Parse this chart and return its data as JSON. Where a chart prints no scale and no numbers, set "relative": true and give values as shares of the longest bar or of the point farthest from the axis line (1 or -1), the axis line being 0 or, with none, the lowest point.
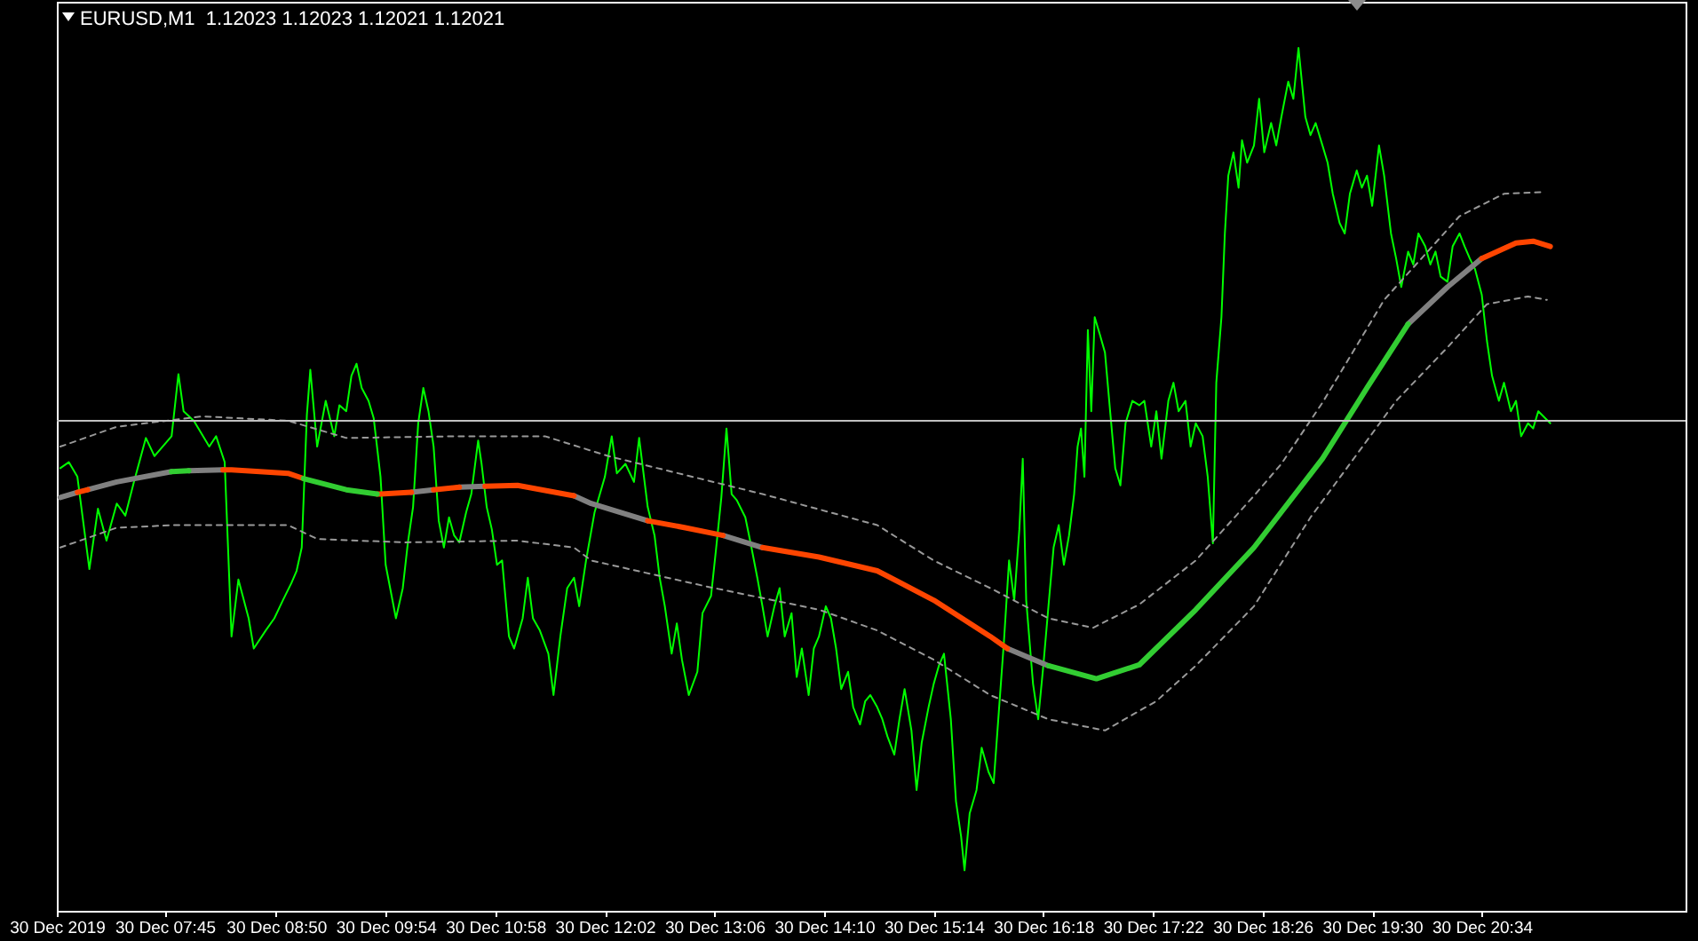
{
  "chart_data": {
    "type": "line",
    "title": "EURUSD,M1  1.12023 1.12023 1.12021 1.12021",
    "relative": true,
    "xlim": [
      "2019-12-30T06:42",
      "2019-12-30T22:33"
    ],
    "xticks": [
      {
        "value": "2019-12-30T06:42",
        "label": "30 Dec 2019"
      },
      {
        "value": "2019-12-30T07:45",
        "label": "30 Dec 07:45"
      },
      {
        "value": "2019-12-30T08:50",
        "label": "30 Dec 08:50"
      },
      {
        "value": "2019-12-30T09:54",
        "label": "30 Dec 09:54"
      },
      {
        "value": "2019-12-30T10:58",
        "label": "30 Dec 10:58"
      },
      {
        "value": "2019-12-30T12:02",
        "label": "30 Dec 12:02"
      },
      {
        "value": "2019-12-30T13:06",
        "label": "30 Dec 13:06"
      },
      {
        "value": "2019-12-30T14:10",
        "label": "30 Dec 14:10"
      },
      {
        "value": "2019-12-30T15:14",
        "label": "30 Dec 15:14"
      },
      {
        "value": "2019-12-30T16:18",
        "label": "30 Dec 16:18"
      },
      {
        "value": "2019-12-30T17:22",
        "label": "30 Dec 17:22"
      },
      {
        "value": "2019-12-30T18:26",
        "label": "30 Dec 18:26"
      },
      {
        "value": "2019-12-30T19:30",
        "label": "30 Dec 19:30"
      },
      {
        "value": "2019-12-30T20:34",
        "label": "30 Dec 20:34"
      }
    ],
    "series": [
      {
        "color": "#00ff00",
        "x": [
          "2019-12-30T06:44",
          "2019-12-30T06:49",
          "2019-12-30T06:54",
          "2019-12-30T07:01",
          "2019-12-30T07:06",
          "2019-12-30T07:11",
          "2019-12-30T07:17",
          "2019-12-30T07:22",
          "2019-12-30T07:27",
          "2019-12-30T07:34",
          "2019-12-30T07:39",
          "2019-12-30T07:49",
          "2019-12-30T07:53",
          "2019-12-30T07:56",
          "2019-12-30T08:02",
          "2019-12-30T08:11",
          "2019-12-30T08:15",
          "2019-12-30T08:20",
          "2019-12-30T08:24",
          "2019-12-30T08:28",
          "2019-12-30T08:34",
          "2019-12-30T08:37",
          "2019-12-30T08:44",
          "2019-12-30T08:49",
          "2019-12-30T08:54",
          "2019-12-30T08:59",
          "2019-12-30T09:02",
          "2019-12-30T09:05",
          "2019-12-30T09:08",
          "2019-12-30T09:10",
          "2019-12-30T09:14",
          "2019-12-30T09:19",
          "2019-12-30T09:24",
          "2019-12-30T09:27",
          "2019-12-30T09:31",
          "2019-12-30T09:34",
          "2019-12-30T09:37",
          "2019-12-30T09:40",
          "2019-12-30T09:44",
          "2019-12-30T09:47",
          "2019-12-30T09:51",
          "2019-12-30T09:54",
          "2019-12-30T10:00",
          "2019-12-30T10:04",
          "2019-12-30T10:07",
          "2019-12-30T10:10",
          "2019-12-30T10:13",
          "2019-12-30T10:16",
          "2019-12-30T10:19",
          "2019-12-30T10:22",
          "2019-12-30T10:25",
          "2019-12-30T10:28",
          "2019-12-30T10:31",
          "2019-12-30T10:34",
          "2019-12-30T10:37",
          "2019-12-30T10:41",
          "2019-12-30T10:44",
          "2019-12-30T10:48",
          "2019-12-30T10:50",
          "2019-12-30T10:53",
          "2019-12-30T10:56",
          "2019-12-30T10:59",
          "2019-12-30T11:02",
          "2019-12-30T11:06",
          "2019-12-30T11:09",
          "2019-12-30T11:14",
          "2019-12-30T11:17",
          "2019-12-30T11:20",
          "2019-12-30T11:24",
          "2019-12-30T11:29",
          "2019-12-30T11:32",
          "2019-12-30T11:36",
          "2019-12-30T11:40",
          "2019-12-30T11:44",
          "2019-12-30T11:47",
          "2019-12-30T11:51",
          "2019-12-30T11:56",
          "2019-12-30T12:02",
          "2019-12-30T12:06",
          "2019-12-30T12:09",
          "2019-12-30T12:14",
          "2019-12-30T12:19",
          "2019-12-30T12:22",
          "2019-12-30T12:27",
          "2019-12-30T12:31",
          "2019-12-30T12:34",
          "2019-12-30T12:37",
          "2019-12-30T12:41",
          "2019-12-30T12:44",
          "2019-12-30T12:47",
          "2019-12-30T12:51",
          "2019-12-30T12:56",
          "2019-12-30T12:59",
          "2019-12-30T13:04",
          "2019-12-30T13:07",
          "2019-12-30T13:10",
          "2019-12-30T13:13",
          "2019-12-30T13:16",
          "2019-12-30T13:19",
          "2019-12-30T13:24",
          "2019-12-30T13:27",
          "2019-12-30T13:31",
          "2019-12-30T13:34",
          "2019-12-30T13:37",
          "2019-12-30T13:41",
          "2019-12-30T13:44",
          "2019-12-30T13:47",
          "2019-12-30T13:51",
          "2019-12-30T13:54",
          "2019-12-30T13:57",
          "2019-12-30T14:01",
          "2019-12-30T14:04",
          "2019-12-30T14:07",
          "2019-12-30T14:11",
          "2019-12-30T14:14",
          "2019-12-30T14:17",
          "2019-12-30T14:20",
          "2019-12-30T14:24",
          "2019-12-30T14:27",
          "2019-12-30T14:31",
          "2019-12-30T14:34",
          "2019-12-30T14:37",
          "2019-12-30T14:41",
          "2019-12-30T14:44",
          "2019-12-30T14:47",
          "2019-12-30T14:51",
          "2019-12-30T14:54",
          "2019-12-30T14:57",
          "2019-12-30T15:01",
          "2019-12-30T15:04",
          "2019-12-30T15:07",
          "2019-12-30T15:11",
          "2019-12-30T15:14",
          "2019-12-30T15:17",
          "2019-12-30T15:20",
          "2019-12-30T15:24",
          "2019-12-30T15:27",
          "2019-12-30T15:30",
          "2019-12-30T15:32",
          "2019-12-30T15:35",
          "2019-12-30T15:39",
          "2019-12-30T15:42",
          "2019-12-30T15:46",
          "2019-12-30T15:49",
          "2019-12-30T15:52",
          "2019-12-30T15:55",
          "2019-12-30T15:58",
          "2019-12-30T16:01",
          "2019-12-30T16:04",
          "2019-12-30T16:06",
          "2019-12-30T16:08",
          "2019-12-30T16:12",
          "2019-12-30T16:15",
          "2019-12-30T16:18",
          "2019-12-30T16:21",
          "2019-12-30T16:24",
          "2019-12-30T16:27",
          "2019-12-30T16:30",
          "2019-12-30T16:33",
          "2019-12-30T16:36",
          "2019-12-30T16:38",
          "2019-12-30T16:40",
          "2019-12-30T16:42",
          "2019-12-30T16:44",
          "2019-12-30T16:46",
          "2019-12-30T16:48",
          "2019-12-30T16:51",
          "2019-12-30T16:54",
          "2019-12-30T16:57",
          "2019-12-30T17:00",
          "2019-12-30T17:03",
          "2019-12-30T17:06",
          "2019-12-30T17:10",
          "2019-12-30T17:14",
          "2019-12-30T17:17",
          "2019-12-30T17:21",
          "2019-12-30T17:24",
          "2019-12-30T17:27",
          "2019-12-30T17:31",
          "2019-12-30T17:34",
          "2019-12-30T17:37",
          "2019-12-30T17:41",
          "2019-12-30T17:44",
          "2019-12-30T17:47",
          "2019-12-30T17:51",
          "2019-12-30T17:54",
          "2019-12-30T17:57",
          "2019-12-30T17:59",
          "2019-12-30T18:02",
          "2019-12-30T18:04",
          "2019-12-30T18:06",
          "2019-12-30T18:09",
          "2019-12-30T18:12",
          "2019-12-30T18:14",
          "2019-12-30T18:17",
          "2019-12-30T18:21",
          "2019-12-30T18:24",
          "2019-12-30T18:27",
          "2019-12-30T18:31",
          "2019-12-30T18:34",
          "2019-12-30T18:37",
          "2019-12-30T18:41",
          "2019-12-30T18:44",
          "2019-12-30T18:47",
          "2019-12-30T18:51",
          "2019-12-30T18:54",
          "2019-12-30T18:57",
          "2019-12-30T19:01",
          "2019-12-30T19:04",
          "2019-12-30T19:07",
          "2019-12-30T19:11",
          "2019-12-30T19:14",
          "2019-12-30T19:17",
          "2019-12-30T19:21",
          "2019-12-30T19:24",
          "2019-12-30T19:27",
          "2019-12-30T19:30",
          "2019-12-30T19:34",
          "2019-12-30T19:37",
          "2019-12-30T19:41",
          "2019-12-30T19:44",
          "2019-12-30T19:47",
          "2019-12-30T19:51",
          "2019-12-30T19:54",
          "2019-12-30T19:57",
          "2019-12-30T20:01",
          "2019-12-30T20:04",
          "2019-12-30T20:07",
          "2019-12-30T20:10",
          "2019-12-30T20:14",
          "2019-12-30T20:17",
          "2019-12-30T20:21",
          "2019-12-30T20:24",
          "2019-12-30T20:27",
          "2019-12-30T20:30",
          "2019-12-30T20:34",
          "2019-12-30T20:37",
          "2019-12-30T20:40",
          "2019-12-30T20:44",
          "2019-12-30T20:47",
          "2019-12-30T20:51",
          "2019-12-30T20:54",
          "2019-12-30T20:57",
          "2019-12-30T21:01",
          "2019-12-30T21:04",
          "2019-12-30T21:07",
          "2019-12-30T21:11",
          "2019-12-30T21:14"
        ],
        "values": [
          0.513,
          0.52,
          0.503,
          0.396,
          0.466,
          0.429,
          0.472,
          0.458,
          0.497,
          0.548,
          0.527,
          0.55,
          0.622,
          0.579,
          0.568,
          0.538,
          0.55,
          0.52,
          0.318,
          0.384,
          0.339,
          0.304,
          0.325,
          0.339,
          0.36,
          0.38,
          0.394,
          0.421,
          0.575,
          0.627,
          0.538,
          0.591,
          0.55,
          0.586,
          0.579,
          0.62,
          0.634,
          0.606,
          0.591,
          0.571,
          0.503,
          0.401,
          0.339,
          0.374,
          0.427,
          0.468,
          0.565,
          0.606,
          0.579,
          0.538,
          0.452,
          0.421,
          0.456,
          0.435,
          0.427,
          0.462,
          0.483,
          0.545,
          0.518,
          0.468,
          0.442,
          0.401,
          0.406,
          0.318,
          0.304,
          0.339,
          0.386,
          0.339,
          0.325,
          0.298,
          0.25,
          0.318,
          0.374,
          0.386,
          0.353,
          0.406,
          0.462,
          0.503,
          0.55,
          0.507,
          0.518,
          0.497,
          0.548,
          0.468,
          0.435,
          0.386,
          0.353,
          0.298,
          0.333,
          0.291,
          0.25,
          0.277,
          0.345,
          0.365,
          0.421,
          0.479,
          0.559,
          0.483,
          0.476,
          0.456,
          0.427,
          0.386,
          0.353,
          0.318,
          0.353,
          0.374,
          0.318,
          0.345,
          0.271,
          0.304,
          0.25,
          0.304,
          0.318,
          0.353,
          0.339,
          0.304,
          0.257,
          0.277,
          0.236,
          0.216,
          0.243,
          0.25,
          0.236,
          0.222,
          0.202,
          0.181,
          0.222,
          0.257,
          0.209,
          0.14,
          0.195,
          0.236,
          0.263,
          0.284,
          0.298,
          0.222,
          0.127,
          0.086,
          0.047,
          0.113,
          0.14,
          0.189,
          0.161,
          0.148,
          0.23,
          0.312,
          0.406,
          0.36,
          0.442,
          0.524,
          0.36,
          0.263,
          0.222,
          0.284,
          0.353,
          0.421,
          0.447,
          0.401,
          0.435,
          0.483,
          0.538,
          0.559,
          0.503,
          0.673,
          0.579,
          0.688,
          0.668,
          0.647,
          0.579,
          0.513,
          0.493,
          0.565,
          0.591,
          0.586,
          0.591,
          0.538,
          0.579,
          0.524,
          0.591,
          0.612,
          0.579,
          0.591,
          0.538,
          0.565,
          0.55,
          0.503,
          0.426,
          0.612,
          0.688,
          0.785,
          0.852,
          0.879,
          0.838,
          0.893,
          0.867,
          0.887,
          0.941,
          0.879,
          0.913,
          0.887,
          0.92,
          0.961,
          0.941,
          1,
          0.92,
          0.899,
          0.913,
          0.887,
          0.867,
          0.831,
          0.797,
          0.785,
          0.831,
          0.858,
          0.838,
          0.852,
          0.817,
          0.887,
          0.852,
          0.785,
          0.756,
          0.723,
          0.764,
          0.749,
          0.785,
          0.77,
          0.749,
          0.764,
          0.735,
          0.729,
          0.77,
          0.785,
          0.77,
          0.756,
          0.744,
          0.714,
          0.661,
          0.62,
          0.591,
          0.612,
          0.579,
          0.591,
          0.55,
          0.565,
          0.559,
          0.579,
          0.571,
          0.565
        ]
      },
      {
        "color": "#808080",
        "x": [
          "2019-12-30T06:44",
          "2019-12-30T06:54",
          "2019-12-30T06:57",
          "2019-12-30T07:00",
          "2019-12-30T07:17",
          "2019-12-30T07:49",
          "2019-12-30T07:54",
          "2019-12-30T07:59",
          "2019-12-30T08:19",
          "2019-12-30T09:18",
          "2019-12-30T10:09",
          "2019-12-30T10:22",
          "2019-12-30T10:30",
          "2019-12-30T10:37",
          "2019-12-30T10:52",
          "2019-12-30T11:18",
          "2019-12-30T11:44",
          "2019-12-30T11:54",
          "2019-12-30T12:27",
          "2019-12-30T12:48",
          "2019-12-30T13:11",
          "2019-12-30T13:34",
          "2019-12-30T14:48",
          "2019-12-30T15:57",
          "2019-12-30T16:21",
          "2019-12-30T18:00",
          "2019-12-30T19:51",
          "2019-12-30T20:14",
          "2019-12-30T20:34"
        ],
        "values": [
          0.479,
          0.485,
          null,
          0.488,
          0.497,
          0.509,
          null,
          0.51,
          0.511,
          null,
          0.485,
          0.488,
          null,
          0.491,
          0.492,
          null,
          0.481,
          0.472,
          0.452,
          null,
          0.435,
          0.421,
          null,
          0.304,
          0.284,
          null,
          0.68,
          0.723,
          0.756
        ]
      },
      {
        "color": "#ff4500",
        "x": [
          "2019-12-30T06:54",
          "2019-12-30T07:00",
          "2019-12-30T07:30",
          "2019-12-30T08:19",
          "2019-12-30T08:24",
          "2019-12-30T08:57",
          "2019-12-30T09:06",
          "2019-12-30T09:30",
          "2019-12-30T09:49",
          "2019-12-30T09:51",
          "2019-12-30T10:09",
          "2019-12-30T10:15",
          "2019-12-30T10:22",
          "2019-12-30T10:37",
          "2019-12-30T10:45",
          "2019-12-30T10:52",
          "2019-12-30T11:11",
          "2019-12-30T11:44",
          "2019-12-30T12:06",
          "2019-12-30T12:27",
          "2019-12-30T12:49",
          "2019-12-30T13:11",
          "2019-12-30T13:24",
          "2019-12-30T13:34",
          "2019-12-30T14:07",
          "2019-12-30T14:41",
          "2019-12-30T15:14",
          "2019-12-30T15:47",
          "2019-12-30T15:57",
          "2019-12-30T18:00",
          "2019-12-30T20:34",
          "2019-12-30T20:54",
          "2019-12-30T21:04",
          "2019-12-30T21:14"
        ],
        "values": [
          0.485,
          0.488,
          null,
          0.511,
          0.511,
          0.507,
          0.501,
          null,
          0.483,
          0.483,
          0.485,
          null,
          0.488,
          0.491,
          null,
          0.492,
          0.493,
          0.481,
          null,
          0.452,
          0.444,
          0.435,
          null,
          0.421,
          0.41,
          0.394,
          0.36,
          0.318,
          0.304,
          null,
          0.756,
          0.774,
          0.776,
          0.77
        ]
      },
      {
        "color": "#32cd32",
        "x": [
          "2019-12-30T07:49",
          "2019-12-30T07:59",
          "2019-12-30T08:30",
          "2019-12-30T09:06",
          "2019-12-30T09:31",
          "2019-12-30T09:49",
          "2019-12-30T13:00",
          "2019-12-30T16:21",
          "2019-12-30T16:49",
          "2019-12-30T17:14",
          "2019-12-30T17:47",
          "2019-12-30T18:21",
          "2019-12-30T19:01",
          "2019-12-30T19:27",
          "2019-12-30T19:51"
        ],
        "values": [
          0.509,
          0.51,
          null,
          0.501,
          0.488,
          0.483,
          null,
          0.284,
          0.269,
          0.285,
          0.349,
          0.421,
          0.524,
          0.606,
          0.68
        ]
      },
      {
        "color": "#999999",
        "line_style": "dashed",
        "x": [
          "2019-12-30T06:44",
          "2019-12-30T07:17",
          "2019-12-30T08:07",
          "2019-12-30T08:57",
          "2019-12-30T09:31",
          "2019-12-30T10:37",
          "2019-12-30T11:27",
          "2019-12-30T12:04",
          "2019-12-30T13:34",
          "2019-12-30T14:41",
          "2019-12-30T15:14",
          "2019-12-30T15:47",
          "2019-12-30T16:21",
          "2019-12-30T16:47",
          "2019-12-30T17:14",
          "2019-12-30T17:47",
          "2019-12-30T18:21",
          "2019-12-30T18:37",
          "2019-12-30T19:01",
          "2019-12-30T19:37",
          "2019-12-30T20:21",
          "2019-12-30T20:47",
          "2019-12-30T21:11"
        ],
        "values": [
          0.538,
          0.561,
          0.573,
          0.568,
          0.548,
          0.55,
          0.55,
          0.527,
          0.483,
          0.447,
          0.406,
          0.374,
          0.339,
          0.328,
          0.355,
          0.406,
          0.481,
          0.518,
          0.589,
          0.708,
          0.805,
          0.831,
          0.833
        ]
      },
      {
        "color": "#999999",
        "line_style": "dashed",
        "x": [
          "2019-12-30T06:44",
          "2019-12-30T07:17",
          "2019-12-30T07:51",
          "2019-12-30T08:57",
          "2019-12-30T09:14",
          "2019-12-30T10:04",
          "2019-12-30T11:11",
          "2019-12-30T11:44",
          "2019-12-30T11:54",
          "2019-12-30T13:01",
          "2019-12-30T14:07",
          "2019-12-30T14:41",
          "2019-12-30T15:14",
          "2019-12-30T15:47",
          "2019-12-30T16:21",
          "2019-12-30T16:54",
          "2019-12-30T17:24",
          "2019-12-30T17:47",
          "2019-12-30T18:21",
          "2019-12-30T18:54",
          "2019-12-30T19:17",
          "2019-12-30T19:44",
          "2019-12-30T20:14",
          "2019-12-30T20:37",
          "2019-12-30T21:01",
          "2019-12-30T21:12"
        ],
        "values": [
          0.421,
          0.444,
          0.447,
          0.447,
          0.431,
          0.427,
          0.429,
          0.421,
          0.406,
          0.376,
          0.349,
          0.325,
          0.291,
          0.25,
          0.222,
          0.209,
          0.243,
          0.284,
          0.353,
          0.456,
          0.518,
          0.591,
          0.653,
          0.703,
          0.712,
          0.708
        ]
      }
    ],
    "ref_lines": [
      {
        "axis": "y",
        "value": 0.568,
        "color": "#c0c0c0"
      }
    ]
  }
}
